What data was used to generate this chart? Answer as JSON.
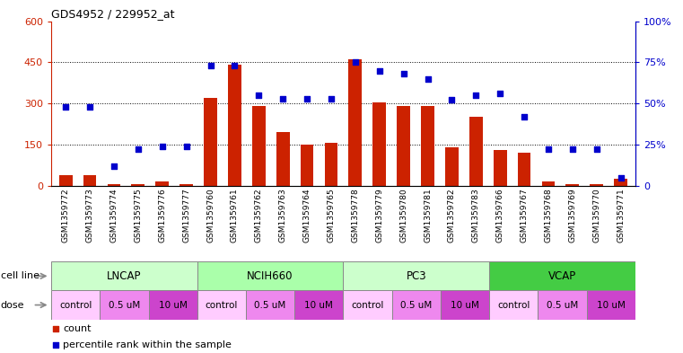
{
  "title": "GDS4952 / 229952_at",
  "samples": [
    "GSM1359772",
    "GSM1359773",
    "GSM1359774",
    "GSM1359775",
    "GSM1359776",
    "GSM1359777",
    "GSM1359760",
    "GSM1359761",
    "GSM1359762",
    "GSM1359763",
    "GSM1359764",
    "GSM1359765",
    "GSM1359778",
    "GSM1359779",
    "GSM1359780",
    "GSM1359781",
    "GSM1359782",
    "GSM1359783",
    "GSM1359766",
    "GSM1359767",
    "GSM1359768",
    "GSM1359769",
    "GSM1359770",
    "GSM1359771"
  ],
  "counts": [
    40,
    40,
    5,
    5,
    15,
    5,
    320,
    440,
    290,
    195,
    150,
    155,
    460,
    305,
    290,
    290,
    140,
    250,
    130,
    120,
    15,
    5,
    5,
    25
  ],
  "percentiles": [
    48,
    48,
    12,
    22,
    24,
    24,
    73,
    73,
    55,
    53,
    53,
    53,
    75,
    70,
    68,
    65,
    52,
    55,
    56,
    42,
    22,
    22,
    22,
    5
  ],
  "cell_lines": [
    {
      "name": "LNCAP",
      "start": 0,
      "end": 6,
      "color": "#ccffcc"
    },
    {
      "name": "NCIH660",
      "start": 6,
      "end": 12,
      "color": "#aaffaa"
    },
    {
      "name": "PC3",
      "start": 12,
      "end": 18,
      "color": "#ccffcc"
    },
    {
      "name": "VCAP",
      "start": 18,
      "end": 24,
      "color": "#44cc44"
    }
  ],
  "doses": [
    {
      "name": "control",
      "start": 0,
      "end": 2,
      "color": "#ffccff"
    },
    {
      "name": "0.5 uM",
      "start": 2,
      "end": 4,
      "color": "#ee88ee"
    },
    {
      "name": "10 uM",
      "start": 4,
      "end": 6,
      "color": "#cc44cc"
    },
    {
      "name": "control",
      "start": 6,
      "end": 8,
      "color": "#ffccff"
    },
    {
      "name": "0.5 uM",
      "start": 8,
      "end": 10,
      "color": "#ee88ee"
    },
    {
      "name": "10 uM",
      "start": 10,
      "end": 12,
      "color": "#cc44cc"
    },
    {
      "name": "control",
      "start": 12,
      "end": 14,
      "color": "#ffccff"
    },
    {
      "name": "0.5 uM",
      "start": 14,
      "end": 16,
      "color": "#ee88ee"
    },
    {
      "name": "10 uM",
      "start": 16,
      "end": 18,
      "color": "#cc44cc"
    },
    {
      "name": "control",
      "start": 18,
      "end": 20,
      "color": "#ffccff"
    },
    {
      "name": "0.5 uM",
      "start": 20,
      "end": 22,
      "color": "#ee88ee"
    },
    {
      "name": "10 uM",
      "start": 22,
      "end": 24,
      "color": "#cc44cc"
    }
  ],
  "bar_color": "#cc2200",
  "scatter_color": "#0000cc",
  "ylim_left": [
    0,
    600
  ],
  "ylim_right": [
    0,
    100
  ],
  "yticks_left": [
    0,
    150,
    300,
    450,
    600
  ],
  "yticks_right": [
    0,
    25,
    50,
    75,
    100
  ],
  "ytick_labels_left": [
    "0",
    "150",
    "300",
    "450",
    "600"
  ],
  "ytick_labels_right": [
    "0",
    "25%",
    "50%",
    "75%",
    "100%"
  ],
  "bar_width": 0.55,
  "background_color": "#ffffff"
}
